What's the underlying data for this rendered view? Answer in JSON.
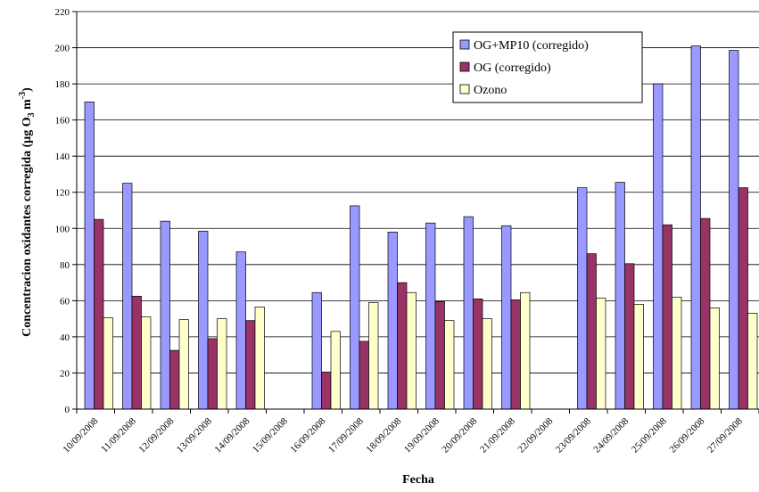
{
  "chart_data": {
    "type": "bar",
    "title": "",
    "xlabel": "Fecha",
    "ylabel": {
      "main": "Concentracion oxidantes corregida (μg O",
      "sub": "3",
      "mid": " m",
      "sup": "-3",
      "end": ")"
    },
    "ylim": [
      0,
      220
    ],
    "yticks": [
      0,
      20,
      40,
      60,
      80,
      100,
      120,
      140,
      160,
      180,
      200,
      220
    ],
    "grid": true,
    "legend_position": "top-right",
    "categories": [
      "10/09/2008",
      "11/09/2008",
      "12/09/2008",
      "13/09/2008",
      "14/09/2008",
      "15/09/2008",
      "16/09/2008",
      "17/09/2008",
      "18/09/2008",
      "19/09/2008",
      "20/09/2008",
      "21/09/2008",
      "22/09/2008",
      "23/09/2008",
      "24/09/2008",
      "25/09/2008",
      "26/09/2008",
      "27/09/2008"
    ],
    "series": [
      {
        "name": "OG+MP10 (corregido)",
        "color": "#9999ff",
        "values": [
          170,
          125,
          104,
          98.5,
          87,
          null,
          64.5,
          112.5,
          98,
          103,
          106.5,
          101.5,
          null,
          122.5,
          125.5,
          180,
          201,
          198.5
        ]
      },
      {
        "name": "OG (corregido)",
        "color": "#993366",
        "values": [
          105,
          62.5,
          32.5,
          39,
          49,
          null,
          20.5,
          37.5,
          70,
          59.5,
          61,
          60.5,
          null,
          86,
          80.5,
          102,
          105.5,
          122.5
        ]
      },
      {
        "name": "Ozono",
        "color": "#ffffcc",
        "values": [
          50.5,
          51,
          49.5,
          50,
          56.5,
          null,
          43,
          59,
          64.5,
          49,
          50,
          64.5,
          null,
          61.5,
          58,
          62,
          56,
          53
        ]
      }
    ]
  }
}
